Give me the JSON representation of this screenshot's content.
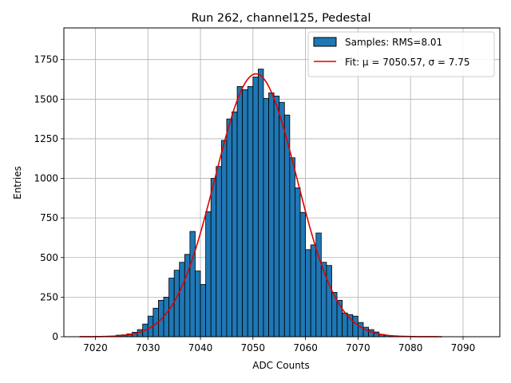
{
  "chart_data": {
    "type": "bar",
    "title": "Run 262, channel125, Pedestal",
    "xlabel": "ADC Counts",
    "ylabel": "Entries",
    "xlim": [
      7014,
      7097
    ],
    "ylim": [
      0,
      1950
    ],
    "xticks": [
      7020,
      7030,
      7040,
      7050,
      7060,
      7070,
      7080,
      7090
    ],
    "yticks": [
      0,
      250,
      500,
      750,
      1000,
      1250,
      1500,
      1750
    ],
    "grid": true,
    "legend_position": "top-right",
    "bin_width": 1,
    "colors": {
      "bars": "#1f77b4",
      "bar_edge": "#000000",
      "fit": "#e00000",
      "grid": "#b0b0b0"
    },
    "series": [
      {
        "name": "Samples: RMS=8.01",
        "kind": "histogram",
        "bins": [
          7024,
          7025,
          7026,
          7027,
          7028,
          7029,
          7030,
          7031,
          7032,
          7033,
          7034,
          7035,
          7036,
          7037,
          7038,
          7039,
          7040,
          7041,
          7042,
          7043,
          7044,
          7045,
          7046,
          7047,
          7048,
          7049,
          7050,
          7051,
          7052,
          7053,
          7054,
          7055,
          7056,
          7057,
          7058,
          7059,
          7060,
          7061,
          7062,
          7063,
          7064,
          7065,
          7066,
          7067,
          7068,
          7069,
          7070,
          7071,
          7072,
          7073,
          7074,
          7075,
          7076,
          7077
        ],
        "values": [
          10,
          12,
          18,
          28,
          45,
          80,
          130,
          180,
          230,
          250,
          370,
          420,
          470,
          520,
          665,
          415,
          330,
          790,
          1000,
          1075,
          1240,
          1375,
          1420,
          1580,
          1560,
          1580,
          1640,
          1690,
          1505,
          1540,
          1520,
          1480,
          1400,
          1130,
          940,
          785,
          550,
          580,
          655,
          470,
          450,
          280,
          230,
          150,
          140,
          130,
          90,
          60,
          45,
          30,
          15,
          8,
          5,
          3
        ]
      },
      {
        "name": "Fit: μ = 7050.57, σ = 7.75",
        "kind": "gaussian",
        "mu": 7050.57,
        "sigma": 7.75,
        "amplitude": 1660,
        "x_range": [
          7017,
          7086
        ]
      }
    ]
  }
}
